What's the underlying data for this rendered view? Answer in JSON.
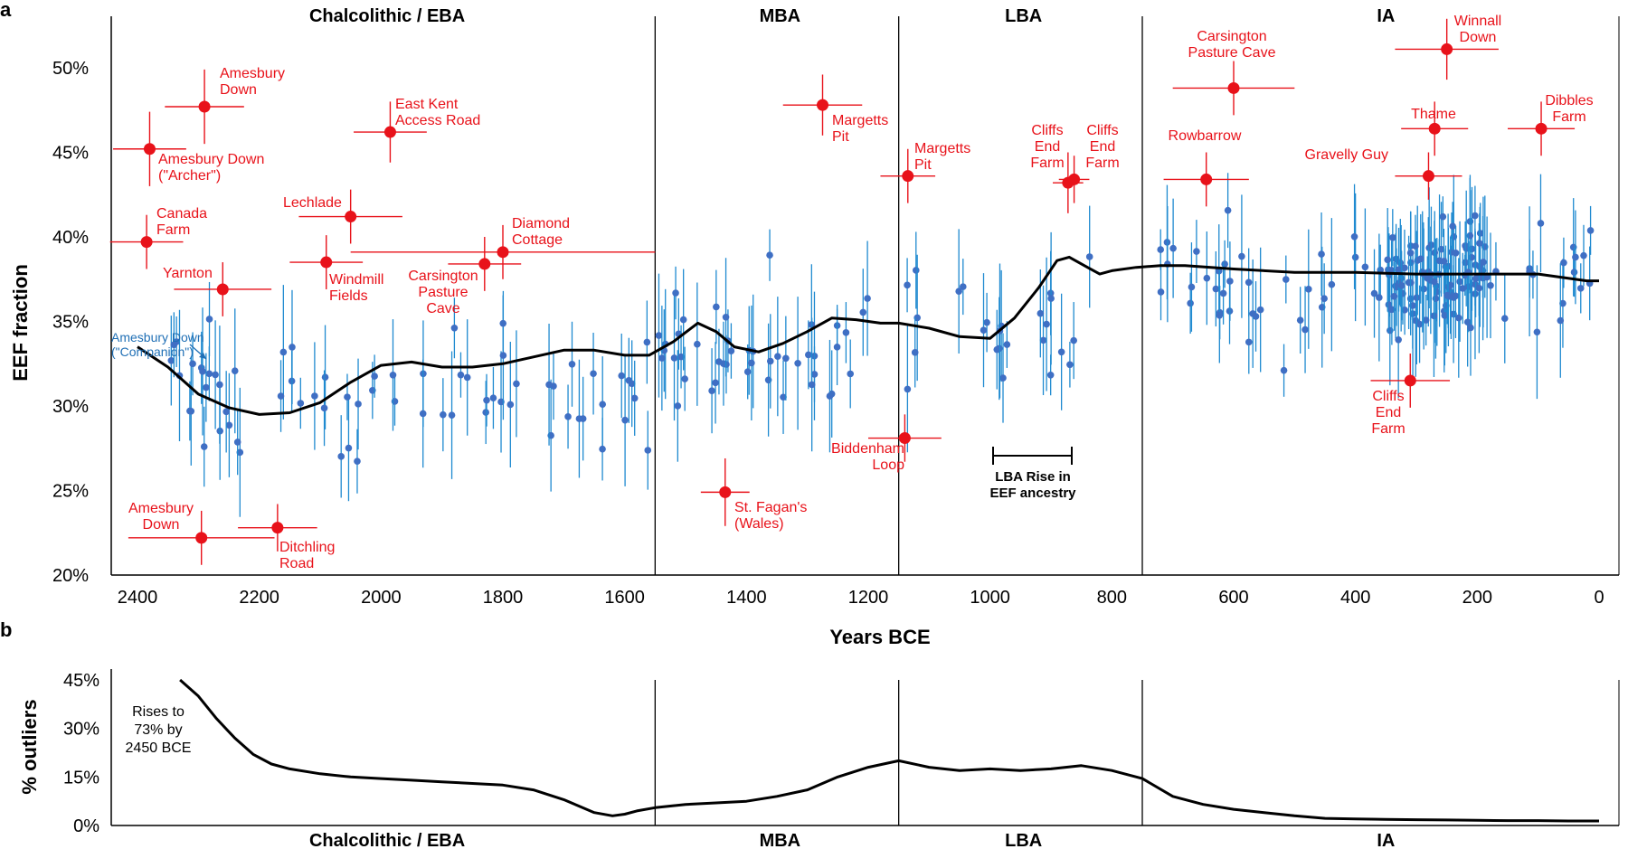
{
  "panels": {
    "a": "a",
    "b": "b"
  },
  "colors": {
    "red": "#e8121a",
    "blue": "#3f6fc4",
    "blueBar": "#1f8ad0",
    "black": "#000000"
  },
  "chart_data": [
    {
      "type": "scatter",
      "title": "",
      "xlabel": "Years BCE",
      "ylabel": "EEF fraction",
      "xlim": [
        2430,
        -20
      ],
      "ylim": [
        20,
        54
      ],
      "x_ticks": [
        2400,
        2200,
        2000,
        1800,
        1600,
        1400,
        1200,
        1000,
        800,
        600,
        400,
        200,
        0
      ],
      "y_ticks": [
        20,
        25,
        30,
        35,
        40,
        45,
        50
      ],
      "y_tick_labels": [
        "20%",
        "25%",
        "30%",
        "35%",
        "40%",
        "45%",
        "50%"
      ],
      "period_boundaries": [
        1550,
        1150,
        750
      ],
      "periods": [
        {
          "label": "Chalcolithic / EBA",
          "x": 1990
        },
        {
          "label": "MBA",
          "x": 1345
        },
        {
          "label": "LBA",
          "x": 945
        },
        {
          "label": "IA",
          "x": 350
        }
      ],
      "trend": {
        "x": [
          2400,
          2350,
          2300,
          2250,
          2200,
          2150,
          2100,
          2050,
          2000,
          1950,
          1900,
          1850,
          1800,
          1750,
          1700,
          1650,
          1600,
          1560,
          1520,
          1480,
          1450,
          1420,
          1380,
          1340,
          1300,
          1260,
          1220,
          1180,
          1150,
          1100,
          1050,
          1000,
          960,
          920,
          890,
          870,
          840,
          820,
          800,
          760,
          720,
          680,
          600,
          500,
          400,
          300,
          200,
          100,
          20,
          0
        ],
        "y": [
          33.5,
          32.3,
          30.7,
          29.9,
          29.5,
          29.6,
          30.2,
          31.4,
          32.4,
          32.6,
          32.3,
          32.3,
          32.5,
          32.9,
          33.3,
          33.3,
          33.0,
          33.0,
          33.8,
          34.9,
          34.4,
          33.5,
          33.2,
          33.7,
          34.4,
          35.2,
          35.1,
          34.9,
          34.9,
          34.6,
          34.1,
          34.0,
          35.2,
          37.0,
          38.6,
          38.8,
          38.2,
          37.8,
          38.0,
          38.2,
          38.3,
          38.3,
          38.1,
          37.9,
          37.9,
          37.8,
          37.8,
          37.8,
          37.4,
          37.4
        ]
      },
      "highlighted_samples": [
        {
          "name": "Amesbury Down (\"Archer\")",
          "x": 2380,
          "y": 45.2,
          "xerr": 60,
          "yerr": 2.2
        },
        {
          "name": "Amesbury Down",
          "x": 2290,
          "y": 47.7,
          "xerr": 65,
          "yerr": 2.2
        },
        {
          "name": "East Kent Access Road",
          "x": 1985,
          "y": 46.2,
          "xerr": 60,
          "yerr": 1.8
        },
        {
          "name": "Canada Farm",
          "x": 2385,
          "y": 39.7,
          "xerr": 60,
          "yerr": 1.6
        },
        {
          "name": "Lechlade",
          "x": 2050,
          "y": 41.2,
          "xerr": 85,
          "yerr": 1.6
        },
        {
          "name": "Windmill Fields",
          "x": 2090,
          "y": 38.5,
          "xerr": 60,
          "yerr": 1.6
        },
        {
          "name": "Diamond Cottage",
          "x": 1800,
          "y": 39.1,
          "xerr": 250,
          "yerr": 1.6
        },
        {
          "name": "Carsington Pasture Cave",
          "x": 1830,
          "y": 38.4,
          "xerr": 60,
          "yerr": 1.6
        },
        {
          "name": "Yarnton",
          "x": 2260,
          "y": 36.9,
          "xerr": 80,
          "yerr": 1.6
        },
        {
          "name": "Amesbury Down",
          "x": 2295,
          "y": 22.2,
          "xerr": 120,
          "yerr": 1.6
        },
        {
          "name": "Ditchling Road",
          "x": 2170,
          "y": 22.8,
          "xerr": 65,
          "yerr": 1.4
        },
        {
          "name": "Margetts Pit",
          "x": 1275,
          "y": 47.8,
          "xerr": 65,
          "yerr": 1.8
        },
        {
          "name": "Margetts Pit",
          "x": 1135,
          "y": 43.6,
          "xerr": 45,
          "yerr": 1.6
        },
        {
          "name": "St. Fagan's (Wales)",
          "x": 1435,
          "y": 24.9,
          "xerr": 40,
          "yerr": 2.0
        },
        {
          "name": "Biddenham Loop",
          "x": 1140,
          "y": 28.1,
          "xerr": 60,
          "yerr": 1.4
        },
        {
          "name": "Cliffs End Farm",
          "x": 872,
          "y": 43.2,
          "xerr": 25,
          "yerr": 1.8
        },
        {
          "name": "Cliffs End Farm",
          "x": 862,
          "y": 43.4,
          "xerr": 25,
          "yerr": 1.4
        },
        {
          "name": "Carsington Pasture Cave",
          "x": 600,
          "y": 48.8,
          "xerr": 100,
          "yerr": 1.6
        },
        {
          "name": "Rowbarrow",
          "x": 645,
          "y": 43.4,
          "xerr": 70,
          "yerr": 1.6
        },
        {
          "name": "Winnall Down",
          "x": 250,
          "y": 51.1,
          "xerr": 85,
          "yerr": 1.8
        },
        {
          "name": "Thame",
          "x": 270,
          "y": 46.4,
          "xerr": 55,
          "yerr": 1.6
        },
        {
          "name": "Dibbles Farm",
          "x": 95,
          "y": 46.4,
          "xerr": 55,
          "yerr": 1.6
        },
        {
          "name": "Gravelly Guy",
          "x": 280,
          "y": 43.6,
          "xerr": 55,
          "yerr": 1.4
        },
        {
          "name": "Cliffs End Farm",
          "x": 310,
          "y": 31.5,
          "xerr": 65,
          "yerr": 1.6
        }
      ],
      "background_samples": {
        "n": 300,
        "mean_by_period": [
          {
            "range": [
              2350,
              1560
            ],
            "mean_pct": 31.0,
            "sd_pct": 3.0
          },
          {
            "range": [
              1550,
              1160
            ],
            "mean_pct": 33.5,
            "sd_pct": 3.0
          },
          {
            "range": [
              1140,
              830
            ],
            "mean_pct": 34.5,
            "sd_pct": 2.8
          },
          {
            "range": [
              720,
              10
            ],
            "mean_pct": 37.5,
            "sd_pct": 2.8
          }
        ]
      }
    },
    {
      "type": "line",
      "title": "",
      "xlabel": "",
      "ylabel": "% outliers",
      "xlim": [
        2430,
        -20
      ],
      "ylim": [
        0,
        45
      ],
      "y_ticks": [
        0,
        15,
        30,
        45
      ],
      "y_tick_labels": [
        "0%",
        "15%",
        "30%",
        "45%"
      ],
      "x": [
        2330,
        2300,
        2270,
        2240,
        2210,
        2180,
        2150,
        2100,
        2050,
        2000,
        1950,
        1900,
        1850,
        1800,
        1750,
        1700,
        1650,
        1620,
        1600,
        1580,
        1550,
        1500,
        1450,
        1400,
        1350,
        1300,
        1250,
        1200,
        1150,
        1100,
        1050,
        1000,
        950,
        900,
        850,
        800,
        750,
        700,
        650,
        600,
        550,
        500,
        450,
        400,
        350,
        300,
        250,
        200,
        150,
        100,
        50,
        0
      ],
      "values": [
        45,
        40,
        33,
        27,
        22,
        19,
        17.5,
        16,
        15,
        14.5,
        14,
        13.5,
        13,
        12.5,
        11,
        8,
        4,
        3,
        3.5,
        4.5,
        5.5,
        6.5,
        7,
        7.5,
        9,
        11,
        15,
        18,
        20,
        18,
        17,
        17.5,
        17,
        17.5,
        18.5,
        17,
        14.5,
        9,
        6.5,
        5,
        4,
        3,
        2.2,
        2,
        1.9,
        1.8,
        1.7,
        1.6,
        1.5,
        1.5,
        1.4,
        1.4
      ],
      "note": "Rises to 73% by 2450 BCE",
      "periods": [
        {
          "label": "Chalcolithic / EBA",
          "x": 1990
        },
        {
          "label": "MBA",
          "x": 1345
        },
        {
          "label": "LBA",
          "x": 945
        },
        {
          "label": "IA",
          "x": 350
        }
      ],
      "period_boundaries": [
        1550,
        1150,
        750
      ]
    }
  ],
  "annotations": {
    "companion": [
      "Amesbury Down",
      "(\"Companion\")"
    ],
    "lba_rise": [
      "LBA Rise in",
      "EEF ancestry"
    ],
    "outlier_note": [
      "Rises to",
      "73% by",
      "2450 BCE"
    ],
    "labels": [
      [
        "Amesbury",
        "Down"
      ],
      [
        "Amesbury Down",
        "(\"Archer\")"
      ],
      [
        "East Kent",
        "Access Road"
      ],
      [
        "Canada",
        "Farm"
      ],
      [
        "Lechlade"
      ],
      [
        "Windmill",
        "Fields"
      ],
      [
        "Diamond",
        "Cottage"
      ],
      [
        "Carsington",
        "Pasture",
        "Cave"
      ],
      [
        "Yarnton"
      ],
      [
        "Amesbury",
        "Down"
      ],
      [
        "Ditchling",
        "Road"
      ],
      [
        "Margetts",
        "Pit"
      ],
      [
        "Margetts",
        "Pit"
      ],
      [
        "St. Fagan's",
        "(Wales)"
      ],
      [
        "Biddenham",
        "Loop"
      ],
      [
        "Cliffs",
        "End",
        "Farm"
      ],
      [
        "Cliffs",
        "End",
        "Farm"
      ],
      [
        "Carsington",
        "Pasture Cave"
      ],
      [
        "Rowbarrow"
      ],
      [
        "Winnall",
        "Down"
      ],
      [
        "Thame"
      ],
      [
        "Dibbles",
        "Farm"
      ],
      [
        "Gravelly Guy"
      ],
      [
        "Cliffs",
        "End",
        "Farm"
      ]
    ]
  }
}
